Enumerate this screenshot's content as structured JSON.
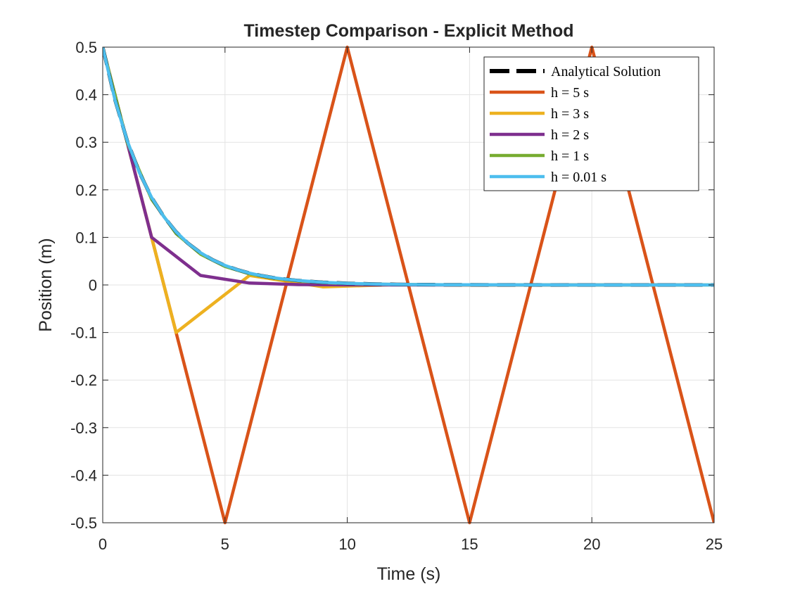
{
  "chart_data": {
    "type": "line",
    "title": "Timestep Comparison - Explicit Method",
    "xlabel": "Time (s)",
    "ylabel": "Position (m)",
    "xlim": [
      0,
      25
    ],
    "ylim": [
      -0.5,
      0.5
    ],
    "xticks": [
      0,
      5,
      10,
      15,
      20,
      25
    ],
    "xtick_labels": [
      "0",
      "5",
      "10",
      "15",
      "20",
      "25"
    ],
    "yticks": [
      -0.5,
      -0.4,
      -0.3,
      -0.2,
      -0.1,
      0,
      0.1,
      0.2,
      0.3,
      0.4,
      0.5
    ],
    "ytick_labels": [
      "-0.5",
      "-0.4",
      "-0.3",
      "-0.2",
      "-0.1",
      "0",
      "0.1",
      "0.2",
      "0.3",
      "0.4",
      "0.5"
    ],
    "grid": true,
    "legend_position": "top-right",
    "series": [
      {
        "name": "Analytical Solution",
        "color": "#000000",
        "dashed": true,
        "x": [
          0,
          0.5,
          1,
          1.5,
          2,
          2.5,
          3,
          3.5,
          4,
          4.5,
          5,
          5.5,
          6,
          6.5,
          7,
          7.5,
          8,
          9,
          10,
          11,
          12,
          13,
          14,
          15,
          17,
          19,
          21,
          23,
          25
        ],
        "y": [
          0.5,
          0.3894,
          0.3033,
          0.2362,
          0.1839,
          0.1433,
          0.1116,
          0.0869,
          0.0677,
          0.0527,
          0.041,
          0.032,
          0.0249,
          0.0194,
          0.0151,
          0.0118,
          0.0092,
          0.0056,
          0.0034,
          0.002,
          0.0012,
          0.0007,
          0.0005,
          0.0003,
          0.0001,
          0.0,
          0.0,
          0.0,
          0.0
        ]
      },
      {
        "name": "h = 5 s",
        "color": "#D95319",
        "dashed": false,
        "x": [
          0,
          5,
          10,
          15,
          20,
          25
        ],
        "y": [
          0.5,
          -0.5,
          0.5,
          -0.5,
          0.5,
          -0.5
        ]
      },
      {
        "name": "h = 3 s",
        "color": "#EDB120",
        "dashed": false,
        "x": [
          0,
          3,
          6,
          9,
          12,
          15,
          18,
          21,
          24
        ],
        "y": [
          0.5,
          -0.1,
          0.02,
          -0.004,
          0.0008,
          -0.0002,
          0.0,
          0.0,
          0.0
        ]
      },
      {
        "name": "h = 2 s",
        "color": "#7E2F8E",
        "dashed": false,
        "x": [
          0,
          2,
          4,
          6,
          8,
          10,
          12,
          14,
          16,
          18,
          20,
          22,
          24
        ],
        "y": [
          0.5,
          0.1,
          0.02,
          0.004,
          0.0008,
          0.0002,
          0.0,
          0.0,
          0.0,
          0.0,
          0.0,
          0.0,
          0.0
        ]
      },
      {
        "name": "h = 1 s",
        "color": "#77AC30",
        "dashed": false,
        "x": [
          0,
          1,
          2,
          3,
          4,
          5,
          6,
          7,
          8,
          9,
          10,
          11,
          12,
          13,
          14,
          15,
          17,
          19,
          21,
          23,
          25
        ],
        "y": [
          0.5,
          0.3,
          0.18,
          0.108,
          0.0648,
          0.0389,
          0.0233,
          0.014,
          0.0084,
          0.005,
          0.003,
          0.0018,
          0.0011,
          0.0007,
          0.0004,
          0.0002,
          0.0001,
          0.0,
          0.0,
          0.0,
          0.0
        ]
      },
      {
        "name": "h = 0.01 s",
        "color": "#4DBEEE",
        "dashed": false,
        "x": [
          0,
          0.5,
          1,
          1.5,
          2,
          2.5,
          3,
          3.5,
          4,
          4.5,
          5,
          5.5,
          6,
          6.5,
          7,
          7.5,
          8,
          9,
          10,
          11,
          12,
          13,
          14,
          15,
          17,
          19,
          21,
          23,
          25
        ],
        "y": [
          0.5,
          0.3894,
          0.3033,
          0.2362,
          0.1839,
          0.1433,
          0.1116,
          0.0869,
          0.0677,
          0.0527,
          0.041,
          0.032,
          0.0249,
          0.0194,
          0.0151,
          0.0118,
          0.0092,
          0.0056,
          0.0034,
          0.002,
          0.0012,
          0.0007,
          0.0005,
          0.0003,
          0.0001,
          0.0,
          0.0,
          0.0,
          0.0
        ]
      }
    ]
  }
}
